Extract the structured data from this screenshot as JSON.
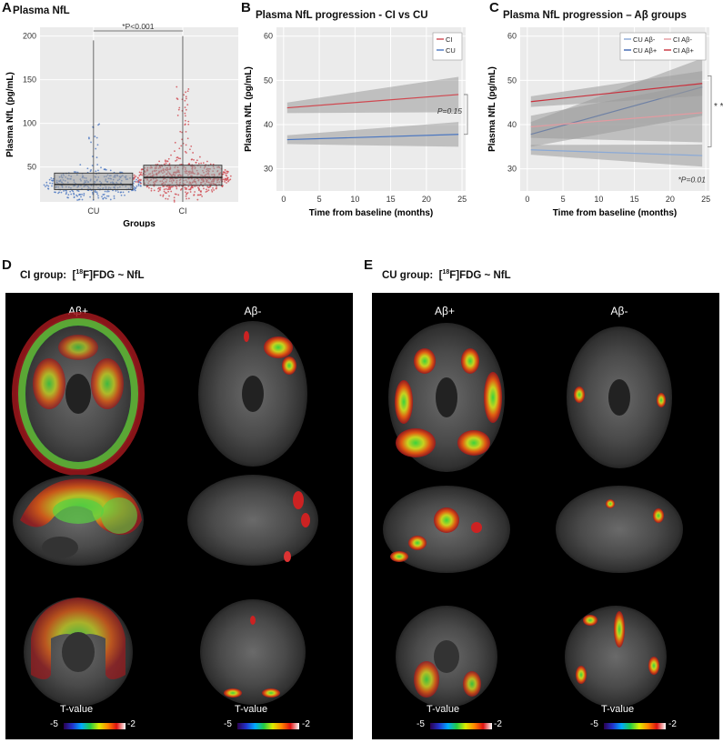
{
  "panels": {
    "A": {
      "letter": "A",
      "title": "Plasma NfL"
    },
    "B": {
      "letter": "B",
      "title": "Plasma NfL progression - CI vs CU"
    },
    "C": {
      "letter": "C",
      "title": "Plasma NfL progression – Aβ groups"
    },
    "D": {
      "letter": "D",
      "title": "CI group: [18F]FDG ~ NfL"
    },
    "E": {
      "letter": "E",
      "title": "CU group: [18F]FDG ~ NfL"
    }
  },
  "brain": {
    "col_pos": "Aβ+",
    "col_neg": "Aβ-",
    "tvalue_label": "T-value",
    "cbar_min": "-5",
    "cbar_max": "-2"
  },
  "chart_data": [
    {
      "type": "scatter",
      "title": "Plasma NfL",
      "xlabel": "Groups",
      "ylabel": "Plasma NfL (pg/mL)",
      "categories": [
        "CU",
        "CI"
      ],
      "ylim": [
        10,
        210
      ],
      "yticks": [
        50,
        100,
        150,
        200
      ],
      "annotation": "*P<0.001",
      "boxes": [
        {
          "name": "CU",
          "q1": 24,
          "median": 30,
          "q3": 43,
          "whisker_low": 12,
          "whisker_high": 195,
          "color": "#4a76c0"
        },
        {
          "name": "CI",
          "q1": 29,
          "median": 38,
          "q3": 52,
          "whisker_low": 10,
          "whisker_high": 200,
          "color": "#d0474f"
        }
      ]
    },
    {
      "type": "line",
      "title": "Plasma NfL progression - CI vs CU",
      "xlabel": "Time from baseline (months)",
      "ylabel": "Plasma NfL (pg/mL)",
      "xlim": [
        -1,
        25.5
      ],
      "ylim": [
        25,
        62
      ],
      "xticks": [
        0,
        5,
        10,
        15,
        20,
        25
      ],
      "yticks": [
        30,
        40,
        50,
        60
      ],
      "annotation": "P=0.15",
      "legend": "top-right",
      "series": [
        {
          "name": "CI",
          "x": [
            0.5,
            24.5
          ],
          "y": [
            43.8,
            46.8
          ],
          "lo": [
            42.6,
            42.8
          ],
          "hi": [
            45.0,
            50.8
          ],
          "color": "#d0474f"
        },
        {
          "name": "CU",
          "x": [
            0.5,
            24.5
          ],
          "y": [
            36.6,
            37.8
          ],
          "lo": [
            35.6,
            35.0
          ],
          "hi": [
            37.6,
            40.6
          ],
          "color": "#4a76c0"
        }
      ]
    },
    {
      "type": "line",
      "title": "Plasma NfL progression – Aβ groups",
      "xlabel": "Time from baseline (months)",
      "ylabel": "Plasma NfL (pg/mL)",
      "xlim": [
        -1,
        25.5
      ],
      "ylim": [
        25,
        62
      ],
      "xticks": [
        0,
        5,
        10,
        15,
        20,
        25
      ],
      "yticks": [
        30,
        40,
        50,
        60
      ],
      "annotation": "*P=0.01",
      "annotation2": "* *",
      "legend": "top-right",
      "series": [
        {
          "name": "CU Aβ-",
          "x": [
            0.5,
            24.5
          ],
          "y": [
            34.3,
            33.0
          ],
          "lo": [
            33.2,
            30.5
          ],
          "hi": [
            35.4,
            35.5
          ],
          "color": "#8aa9d6"
        },
        {
          "name": "CU Aβ+",
          "x": [
            0.5,
            24.5
          ],
          "y": [
            37.8,
            48.5
          ],
          "lo": [
            35.0,
            42.0
          ],
          "hi": [
            40.6,
            55.0
          ],
          "color": "#3b63b0"
        },
        {
          "name": "CI Aβ-",
          "x": [
            0.5,
            24.5
          ],
          "y": [
            39.5,
            42.7
          ],
          "lo": [
            37.0,
            36.0
          ],
          "hi": [
            42.0,
            49.4
          ],
          "color": "#e39aa0"
        },
        {
          "name": "CI Aβ+",
          "x": [
            0.5,
            24.5
          ],
          "y": [
            45.2,
            49.3
          ],
          "lo": [
            44.0,
            46.5
          ],
          "hi": [
            46.4,
            52.1
          ],
          "color": "#c9303c"
        }
      ]
    }
  ]
}
